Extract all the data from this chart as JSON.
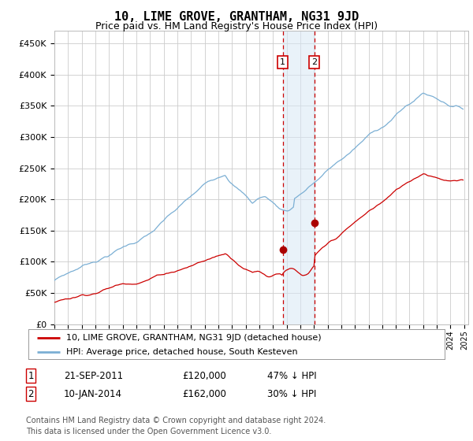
{
  "title": "10, LIME GROVE, GRANTHAM, NG31 9JD",
  "subtitle": "Price paid vs. HM Land Registry's House Price Index (HPI)",
  "title_fontsize": 11,
  "subtitle_fontsize": 9,
  "ylim": [
    0,
    470000
  ],
  "yticks": [
    0,
    50000,
    100000,
    150000,
    200000,
    250000,
    300000,
    350000,
    400000,
    450000
  ],
  "ytick_labels": [
    "£0",
    "£50K",
    "£100K",
    "£150K",
    "£200K",
    "£250K",
    "£300K",
    "£350K",
    "£400K",
    "£450K"
  ],
  "hpi_color": "#7bafd4",
  "price_color": "#cc0000",
  "dot_color": "#aa0000",
  "vline_color": "#cc0000",
  "shade_color": "#d8e8f5",
  "shade_alpha": 0.55,
  "grid_color": "#cccccc",
  "background_color": "#ffffff",
  "sale1_date_num": 2011.72,
  "sale1_price": 120000,
  "sale2_date_num": 2014.03,
  "sale2_price": 162000,
  "sale1_label": "1",
  "sale2_label": "2",
  "legend_line1": "10, LIME GROVE, GRANTHAM, NG31 9JD (detached house)",
  "legend_line2": "HPI: Average price, detached house, South Kesteven",
  "table_row1": [
    "1",
    "21-SEP-2011",
    "£120,000",
    "47% ↓ HPI"
  ],
  "table_row2": [
    "2",
    "10-JAN-2014",
    "£162,000",
    "30% ↓ HPI"
  ],
  "footnote": "Contains HM Land Registry data © Crown copyright and database right 2024.\nThis data is licensed under the Open Government Licence v3.0.",
  "footnote_fontsize": 7,
  "legend_fontsize": 8,
  "table_fontsize": 8.5
}
